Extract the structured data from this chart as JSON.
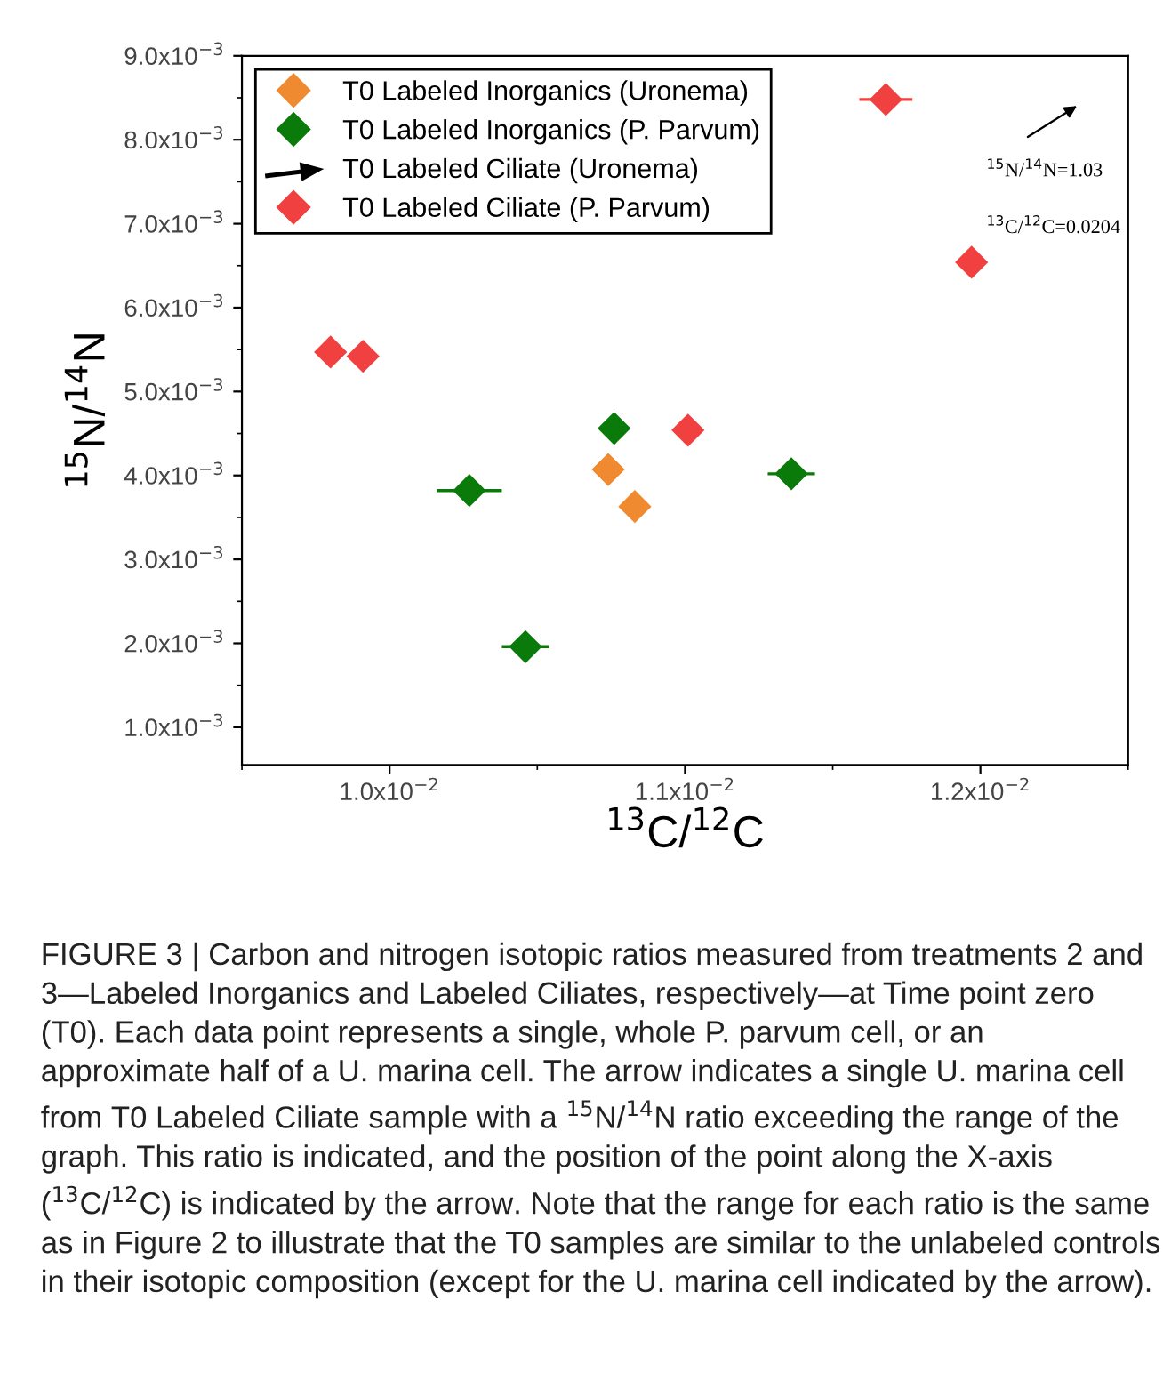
{
  "chart_data": {
    "type": "scatter",
    "xlabel": "$^{13}$C/$^{12}$C",
    "ylabel": "$^{15}$N/$^{14}$N",
    "xlim": [
      0.0095,
      0.0125
    ],
    "ylim": [
      0.00055,
      0.009
    ],
    "xticks": [
      {
        "value": 0.01,
        "label": "1.0x10$^{−2}$"
      },
      {
        "value": 0.011,
        "label": "1.1x10$^{−2}$"
      },
      {
        "value": 0.012,
        "label": "1.2x10$^{−2}$"
      }
    ],
    "yticks": [
      {
        "value": 0.001,
        "label": "1.0x10$^{−3}$"
      },
      {
        "value": 0.002,
        "label": "2.0x10$^{−3}$"
      },
      {
        "value": 0.003,
        "label": "3.0x10$^{−3}$"
      },
      {
        "value": 0.004,
        "label": "4.0x10$^{−3}$"
      },
      {
        "value": 0.005,
        "label": "5.0x10$^{−3}$"
      },
      {
        "value": 0.006,
        "label": "6.0x10$^{−3}$"
      },
      {
        "value": 0.007,
        "label": "7.0x10$^{−3}$"
      },
      {
        "value": 0.008,
        "label": "8.0x10$^{−3}$"
      },
      {
        "value": 0.009,
        "label": "9.0x10$^{−3}$"
      }
    ],
    "marker": "diamond",
    "legend": "top left",
    "grid": false,
    "series": [
      {
        "name": "T0 Labeled Inorganics (Uronema)",
        "color": "#f08a30",
        "x": [
          0.01074,
          0.01083
        ],
        "values": [
          0.00407,
          0.00363
        ]
      },
      {
        "name": "T0 Labeled Inorganics (P. Parvum)",
        "color": "#0a7a0a",
        "x": [
          0.01076,
          0.01027,
          0.01136,
          0.01046
        ],
        "values": [
          0.00456,
          0.00382,
          0.00402,
          0.00196
        ],
        "xerrors": [
          null,
          0.00011,
          8e-05,
          8e-05
        ]
      },
      {
        "name": "T0 Labeled Ciliate (Uronema)",
        "color": "#000000",
        "marker": "arrow"
      },
      {
        "name": "T0 Labeled Ciliate (P. Parvum)",
        "color": "#f04040",
        "x": [
          0.01168,
          0.01197,
          0.0098,
          0.00991,
          0.01101
        ],
        "values": [
          0.00848,
          0.00654,
          0.00547,
          0.00542,
          0.00454
        ],
        "xerrors": [
          9e-05,
          null,
          3e-05,
          5e-05,
          null
        ]
      }
    ],
    "annotations": [
      "$^{15}$N/$^{14}$N=1.03",
      "$^{13}$C/$^{12}$C=0.0204",
      "FIGURE 3 | Carbon and nitrogen isotopic ratios measured from treatments 2 and 3—Labeled Inorganics and Labeled Ciliates, respectively—at Time point zero (T0). Each data point represents a single, whole P. parvum cell, or an approximate half of a U. marina cell. The arrow indicates a single U. marina cell from T0 Labeled Ciliate sample with a $^{15}$N/$^{14}$N ratio exceeding the range of the graph. This ratio is indicated, and the position of the point along the X-axis ($^{13}$C/$^{12}$C) is indicated by the arrow. Note that the range for each ratio is the same as in Figure 2 to illustrate that the T0 samples are similar to the unlabeled controls in their isotopic composition (except for the U. marina cell indicated by the arrow)."
    ]
  }
}
